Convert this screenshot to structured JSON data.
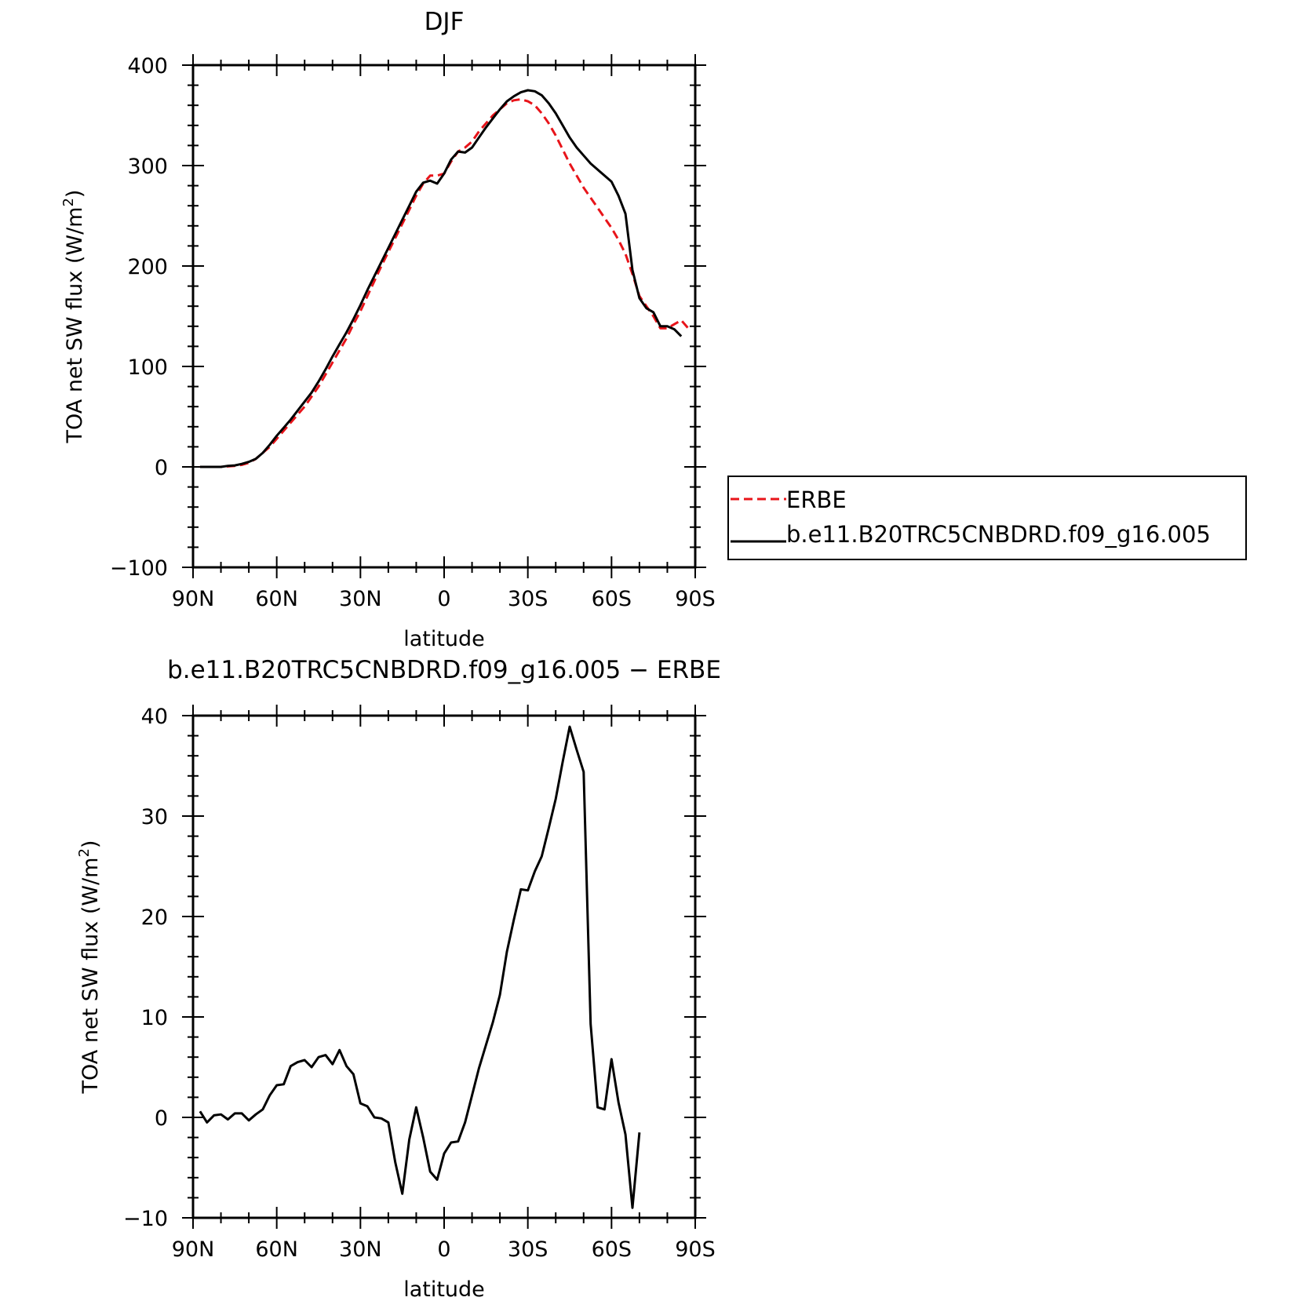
{
  "chart_data": [
    {
      "type": "line",
      "title": "DJF",
      "xlabel": "latitude",
      "ylabel": "TOA net SW flux (W/m²)",
      "ylabel_main": "TOA net SW flux (W/m",
      "ylabel_sup": "2",
      "ylabel_tail": ")",
      "xlim": [
        -90,
        90
      ],
      "ylim": [
        -100,
        400
      ],
      "x_ticks": [
        -90,
        -60,
        -30,
        0,
        30,
        60,
        90
      ],
      "x_tick_labels": [
        "90N",
        "60N",
        "30N",
        "0",
        "30S",
        "60S",
        "90S"
      ],
      "y_ticks": [
        -100,
        0,
        100,
        200,
        300,
        400
      ],
      "y_tick_labels": [
        "−100",
        "0",
        "100",
        "200",
        "300",
        "400"
      ],
      "legend_position": "right",
      "series": [
        {
          "name": "ERBE",
          "color": "#e8141a",
          "dash": "dashed",
          "points": [
            [
              -87.5,
              0
            ],
            [
              -85,
              0
            ],
            [
              -82.5,
              0
            ],
            [
              -80,
              0
            ],
            [
              -77.5,
              0.5
            ],
            [
              -75,
              1
            ],
            [
              -72.5,
              2
            ],
            [
              -70,
              4
            ],
            [
              -67.5,
              8
            ],
            [
              -65,
              14
            ],
            [
              -62.5,
              20
            ],
            [
              -60,
              28
            ],
            [
              -57.5,
              36
            ],
            [
              -55,
              44
            ],
            [
              -52.5,
              52
            ],
            [
              -50,
              60
            ],
            [
              -47.5,
              70
            ],
            [
              -45,
              80
            ],
            [
              -42.5,
              92
            ],
            [
              -40,
              104
            ],
            [
              -37.5,
              116
            ],
            [
              -35,
              128
            ],
            [
              -32.5,
              142
            ],
            [
              -30,
              155
            ],
            [
              -27.5,
              170
            ],
            [
              -25,
              185
            ],
            [
              -22.5,
              200
            ],
            [
              -20,
              214
            ],
            [
              -17.5,
              228
            ],
            [
              -15,
              242
            ],
            [
              -12.5,
              256
            ],
            [
              -10,
              270
            ],
            [
              -7.5,
              282
            ],
            [
              -5,
              290
            ],
            [
              -2.5,
              290
            ],
            [
              0,
              292
            ],
            [
              2.5,
              304
            ],
            [
              5,
              314
            ],
            [
              7.5,
              318
            ],
            [
              10,
              324
            ],
            [
              12.5,
              334
            ],
            [
              15,
              342
            ],
            [
              17.5,
              350
            ],
            [
              20,
              356
            ],
            [
              22.5,
              362
            ],
            [
              25,
              365
            ],
            [
              27.5,
              366
            ],
            [
              30,
              364
            ],
            [
              32.5,
              360
            ],
            [
              35,
              352
            ],
            [
              37.5,
              342
            ],
            [
              40,
              330
            ],
            [
              42.5,
              316
            ],
            [
              45,
              302
            ],
            [
              47.5,
              290
            ],
            [
              50,
              278
            ],
            [
              52.5,
              268
            ],
            [
              55,
              258
            ],
            [
              57.5,
              248
            ],
            [
              60,
              238
            ],
            [
              62.5,
              226
            ],
            [
              65,
              212
            ],
            [
              67.5,
              192
            ],
            [
              70,
              170
            ],
            [
              72.5,
              160
            ],
            [
              75,
              150
            ],
            [
              77.5,
              138
            ],
            [
              80,
              138
            ],
            [
              82.5,
              142
            ],
            [
              85,
              146
            ],
            [
              87.5,
              138
            ]
          ]
        },
        {
          "name": "b.e11.B20TRC5CNBDRD.f09_g16.005",
          "color": "#000000",
          "dash": "solid",
          "points": [
            [
              -87.5,
              0
            ],
            [
              -85,
              0
            ],
            [
              -82.5,
              0
            ],
            [
              -80,
              0
            ],
            [
              -77.5,
              1
            ],
            [
              -75,
              1.5
            ],
            [
              -72.5,
              3
            ],
            [
              -70,
              5
            ],
            [
              -67.5,
              8
            ],
            [
              -65,
              14
            ],
            [
              -62.5,
              22
            ],
            [
              -60,
              31
            ],
            [
              -57.5,
              39
            ],
            [
              -55,
              47
            ],
            [
              -52.5,
              56
            ],
            [
              -50,
              65
            ],
            [
              -47.5,
              74
            ],
            [
              -45,
              85
            ],
            [
              -42.5,
              97
            ],
            [
              -40,
              110
            ],
            [
              -37.5,
              122
            ],
            [
              -35,
              134
            ],
            [
              -32.5,
              147
            ],
            [
              -30,
              161
            ],
            [
              -27.5,
              176
            ],
            [
              -25,
              190
            ],
            [
              -22.5,
              204
            ],
            [
              -20,
              218
            ],
            [
              -17.5,
              232
            ],
            [
              -15,
              246
            ],
            [
              -12.5,
              260
            ],
            [
              -10,
              274
            ],
            [
              -7.5,
              283
            ],
            [
              -5,
              285
            ],
            [
              -2.5,
              282
            ],
            [
              0,
              292
            ],
            [
              2.5,
              306
            ],
            [
              5,
              314
            ],
            [
              7.5,
              313
            ],
            [
              10,
              318
            ],
            [
              12.5,
              328
            ],
            [
              15,
              338
            ],
            [
              17.5,
              347
            ],
            [
              20,
              356
            ],
            [
              22.5,
              364
            ],
            [
              25,
              369
            ],
            [
              27.5,
              373
            ],
            [
              30,
              375
            ],
            [
              32.5,
              374
            ],
            [
              35,
              370
            ],
            [
              37.5,
              362
            ],
            [
              40,
              352
            ],
            [
              42.5,
              340
            ],
            [
              45,
              328
            ],
            [
              47.5,
              318
            ],
            [
              50,
              310
            ],
            [
              52.5,
              302
            ],
            [
              55,
              296
            ],
            [
              57.5,
              290
            ],
            [
              60,
              284
            ],
            [
              62.5,
              270
            ],
            [
              65,
              252
            ],
            [
              67.5,
              196
            ],
            [
              70,
              168
            ],
            [
              72.5,
              158
            ],
            [
              75,
              154
            ],
            [
              77.5,
              140
            ],
            [
              80,
              140
            ],
            [
              82.5,
              137
            ],
            [
              85,
              130
            ]
          ]
        }
      ]
    },
    {
      "type": "line",
      "title": "b.e11.B20TRC5CNBDRD.f09_g16.005 − ERBE",
      "xlabel": "latitude",
      "ylabel": "TOA net SW flux (W/m²)",
      "ylabel_main": "TOA net SW flux (W/m",
      "ylabel_sup": "2",
      "ylabel_tail": ")",
      "xlim": [
        -90,
        90
      ],
      "ylim": [
        -10,
        40
      ],
      "x_ticks": [
        -90,
        -60,
        -30,
        0,
        30,
        60,
        90
      ],
      "x_tick_labels": [
        "90N",
        "60N",
        "30N",
        "0",
        "30S",
        "60S",
        "90S"
      ],
      "y_ticks": [
        -10,
        0,
        10,
        20,
        30,
        40
      ],
      "y_tick_labels": [
        "−10",
        "0",
        "10",
        "20",
        "30",
        "40"
      ],
      "series": [
        {
          "color": "#000000",
          "dash": "solid",
          "points": [
            [
              -87.5,
              0.6
            ],
            [
              -85,
              -0.5
            ],
            [
              -82.5,
              0.2
            ],
            [
              -80,
              0.3
            ],
            [
              -77.5,
              -0.2
            ],
            [
              -75,
              0.4
            ],
            [
              -72.5,
              0.4
            ],
            [
              -70,
              -0.3
            ],
            [
              -67.5,
              0.3
            ],
            [
              -65,
              0.8
            ],
            [
              -62.5,
              2.2
            ],
            [
              -60,
              3.2
            ],
            [
              -57.5,
              3.3
            ],
            [
              -55,
              5.1
            ],
            [
              -52.5,
              5.5
            ],
            [
              -50,
              5.7
            ],
            [
              -47.5,
              5.0
            ],
            [
              -45,
              6.0
            ],
            [
              -42.5,
              6.2
            ],
            [
              -40,
              5.3
            ],
            [
              -37.5,
              6.7
            ],
            [
              -35,
              5.1
            ],
            [
              -32.5,
              4.3
            ],
            [
              -30,
              1.4
            ],
            [
              -27.5,
              1.1
            ],
            [
              -25,
              0
            ],
            [
              -22.5,
              -0.1
            ],
            [
              -20,
              -0.5
            ],
            [
              -17.5,
              -4.5
            ],
            [
              -15,
              -7.6
            ],
            [
              -12.5,
              -2.2
            ],
            [
              -10,
              1.0
            ],
            [
              -7.5,
              -2.0
            ],
            [
              -5,
              -5.4
            ],
            [
              -2.5,
              -6.2
            ],
            [
              0,
              -3.6
            ],
            [
              2.5,
              -2.5
            ],
            [
              5,
              -2.4
            ],
            [
              7.5,
              -0.5
            ],
            [
              10,
              2.2
            ],
            [
              12.5,
              4.9
            ],
            [
              15,
              7.2
            ],
            [
              17.5,
              9.5
            ],
            [
              20,
              12.2
            ],
            [
              22.5,
              16.5
            ],
            [
              25,
              19.7
            ],
            [
              27.5,
              22.7
            ],
            [
              30,
              22.6
            ],
            [
              32.5,
              24.5
            ],
            [
              35,
              26.0
            ],
            [
              37.5,
              28.8
            ],
            [
              40,
              31.7
            ],
            [
              42.5,
              35.4
            ],
            [
              45,
              38.9
            ],
            [
              47.5,
              36.6
            ],
            [
              50,
              34.4
            ],
            [
              52.5,
              9.3
            ],
            [
              55,
              1.0
            ],
            [
              57.5,
              0.8
            ],
            [
              60,
              5.8
            ],
            [
              62.5,
              1.5
            ],
            [
              65,
              -1.7
            ],
            [
              67.5,
              -9.0
            ],
            [
              70,
              -1.5
            ]
          ]
        }
      ]
    }
  ]
}
